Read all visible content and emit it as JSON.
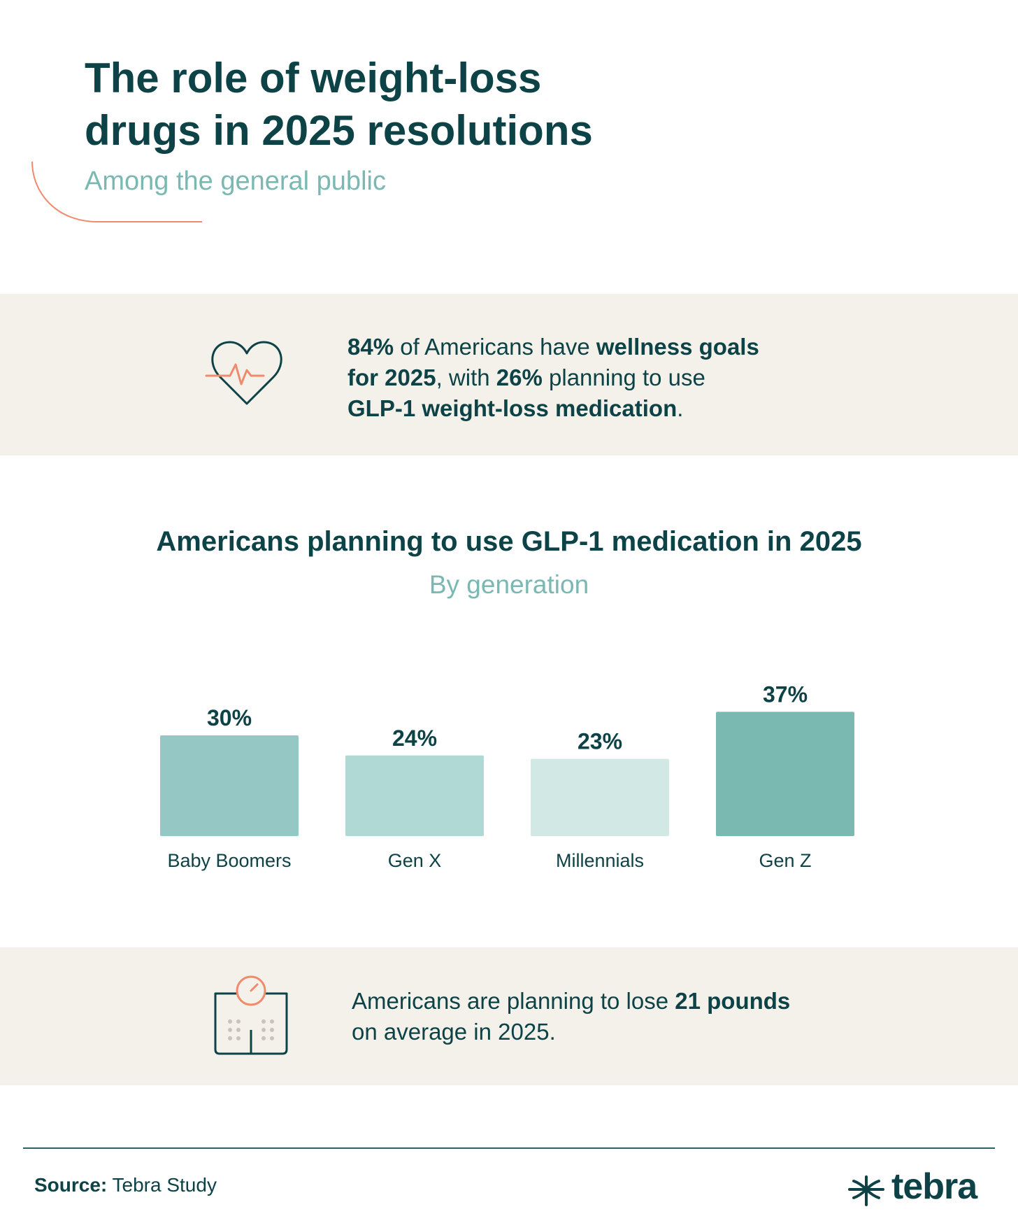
{
  "header": {
    "title_line1": "The role of weight-loss",
    "title_line2": "drugs in 2025 resolutions",
    "subtitle": "Among the general public"
  },
  "stat1": {
    "icon": "heart-pulse-icon",
    "p1": "84%",
    "p2": " of Americans have ",
    "p3": "wellness goals",
    "p4": "for 2025",
    "p5": ", with ",
    "p6": "26%",
    "p7": " planning to use",
    "p8": "GLP-1 weight-loss medication",
    "p9": "."
  },
  "stat2": {
    "icon": "scale-icon",
    "p1": "Americans are planning to lose ",
    "p2": "21 pounds",
    "p3": "on average in 2025."
  },
  "chart_data": {
    "type": "bar",
    "title": "Americans planning to use GLP-1 medication in 2025",
    "subtitle": "By generation",
    "categories": [
      "Baby Boomers",
      "Gen X",
      "Millennials",
      "Gen Z"
    ],
    "values": [
      30,
      24,
      23,
      37
    ],
    "value_labels": [
      "30%",
      "24%",
      "23%",
      "37%"
    ],
    "colors": [
      "#95c8c4",
      "#b0d8d4",
      "#d2e8e5",
      "#7ab8b2"
    ],
    "unit": "%",
    "grid": false,
    "legend": "none"
  },
  "footer": {
    "source_label": "Source:",
    "source_text": " Tebra Study",
    "brand": "tebra"
  },
  "colors": {
    "primary_text": "#0d4346",
    "accent_teal": "#7ab8b2",
    "accent_orange": "#f08a6c",
    "band_bg": "#f4f1eb"
  }
}
